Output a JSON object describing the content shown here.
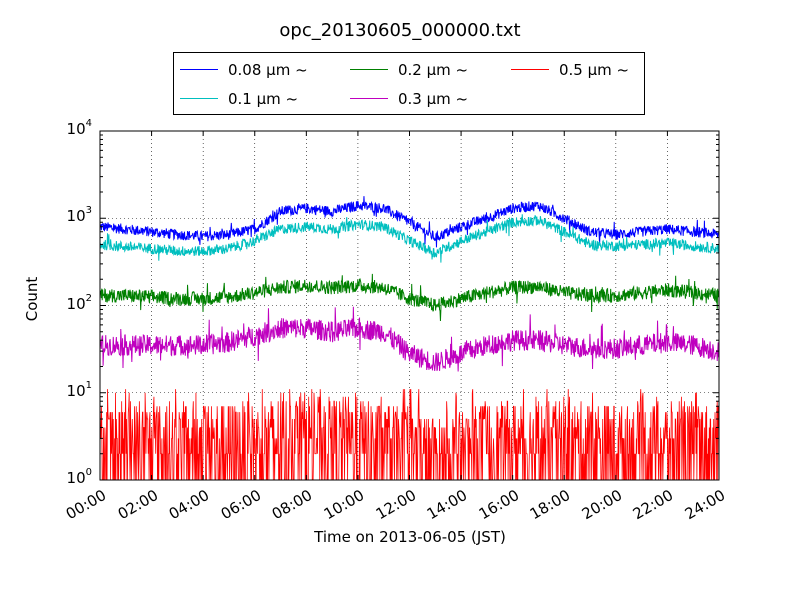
{
  "chart_data": {
    "type": "line",
    "title": "opc_20130605_000000.txt",
    "xlabel": "Time on 2013-06-05 (JST)",
    "ylabel": "Count",
    "y_scale": "log",
    "ylim": [
      1,
      10000
    ],
    "xlim": [
      "00:00",
      "24:00"
    ],
    "grid": true,
    "legend_position": "top-center",
    "x_ticks": [
      "00:00",
      "02:00",
      "04:00",
      "06:00",
      "08:00",
      "10:00",
      "12:00",
      "14:00",
      "16:00",
      "18:00",
      "20:00",
      "22:00",
      "24:00"
    ],
    "y_ticks": [
      {
        "base": "10",
        "exp": "0"
      },
      {
        "base": "10",
        "exp": "1"
      },
      {
        "base": "10",
        "exp": "2"
      },
      {
        "base": "10",
        "exp": "3"
      },
      {
        "base": "10",
        "exp": "4"
      }
    ],
    "x_hours": [
      0,
      1,
      2,
      3,
      4,
      5,
      6,
      7,
      8,
      9,
      10,
      11,
      12,
      13,
      14,
      15,
      16,
      17,
      18,
      19,
      20,
      21,
      22,
      23,
      24
    ],
    "series": [
      {
        "name": "0.08 μm ~",
        "color": "#0000ff",
        "noise": 0.06,
        "values": [
          800,
          750,
          700,
          650,
          620,
          650,
          750,
          1200,
          1300,
          1200,
          1400,
          1300,
          900,
          600,
          800,
          1000,
          1300,
          1400,
          1000,
          700,
          650,
          700,
          750,
          700,
          650
        ]
      },
      {
        "name": "0.1 μm ~",
        "color": "#00bfbf",
        "noise": 0.06,
        "values": [
          500,
          470,
          450,
          420,
          420,
          450,
          550,
          750,
          800,
          750,
          850,
          800,
          550,
          400,
          550,
          700,
          900,
          950,
          700,
          500,
          480,
          500,
          520,
          480,
          450
        ]
      },
      {
        "name": "0.2 μm ~",
        "color": "#008000",
        "noise": 0.08,
        "values": [
          130,
          130,
          125,
          120,
          120,
          125,
          140,
          160,
          170,
          160,
          170,
          160,
          120,
          100,
          120,
          140,
          160,
          165,
          140,
          130,
          130,
          140,
          150,
          140,
          130
        ]
      },
      {
        "name": "0.3 μm ~",
        "color": "#bf00bf",
        "noise": 0.12,
        "values": [
          35,
          35,
          35,
          35,
          35,
          38,
          45,
          55,
          55,
          50,
          55,
          50,
          28,
          22,
          28,
          35,
          40,
          40,
          35,
          32,
          32,
          35,
          38,
          35,
          30
        ]
      },
      {
        "name": "0.5 μm ~",
        "color": "#ff0000",
        "noise": 0.0,
        "values": [
          3,
          3,
          3,
          3,
          3,
          3,
          3,
          3.5,
          4,
          3.5,
          3.5,
          3,
          2.5,
          2,
          2.5,
          3,
          3,
          3,
          3,
          3,
          3,
          3,
          3,
          3,
          3
        ]
      }
    ]
  }
}
